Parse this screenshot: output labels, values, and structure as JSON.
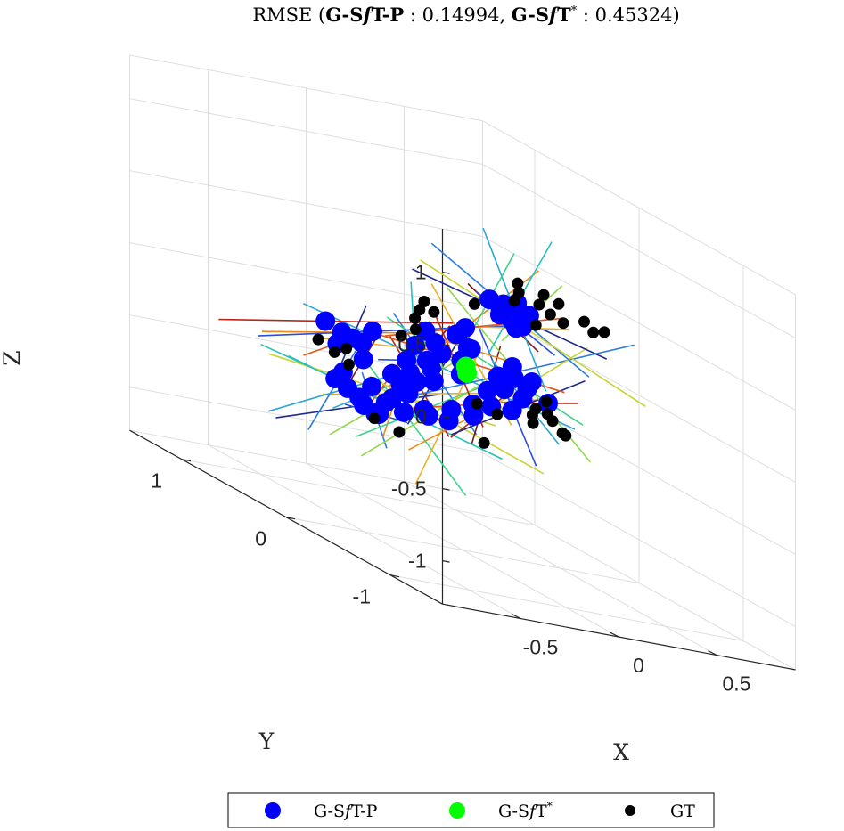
{
  "chart_data": {
    "type": "scatter",
    "title": {
      "prefix": "RMSE (",
      "method1": "G-S",
      "method1_f": "f",
      "method1_suffix": "T-P",
      "value1": " : 0.14994, ",
      "method2": "G-S",
      "method2_f": "f",
      "method2_suffix": "T",
      "method2_sup": "*",
      "value2": " : 0.45324)"
    },
    "xlabel": "X",
    "ylabel": "Y",
    "zlabel": "Z",
    "xlim": [
      -0.9,
      0.9
    ],
    "ylim": [
      -1.5,
      1.5
    ],
    "zlim": [
      -1.3,
      1.3
    ],
    "x_ticks": [
      "-0.5",
      "0",
      "0.5"
    ],
    "y_ticks": [
      "-1",
      "0",
      "1"
    ],
    "z_ticks": [
      "-1",
      "-0.5",
      "0",
      "0.5",
      "1"
    ],
    "grid": true,
    "legend_position": "bottom",
    "colors": {
      "gsft_p": "#0000ff",
      "gsft_star": "#00ff00",
      "gt": "#000000"
    },
    "series": [
      {
        "name": "G-SfT-P",
        "color": "#0000ff",
        "points": [
          [
            -0.45,
            0.1,
            -0.45
          ],
          [
            -0.4,
            0.05,
            -0.48
          ],
          [
            -0.38,
            0.12,
            -0.5
          ],
          [
            -0.42,
            0.2,
            -0.43
          ],
          [
            -0.35,
            0.08,
            -0.4
          ],
          [
            -0.3,
            0.0,
            -0.42
          ],
          [
            -0.28,
            0.15,
            -0.38
          ],
          [
            -0.33,
            0.25,
            -0.35
          ],
          [
            -0.25,
            0.05,
            -0.3
          ],
          [
            -0.22,
            0.18,
            -0.28
          ],
          [
            -0.2,
            0.3,
            -0.25
          ],
          [
            -0.18,
            0.1,
            -0.22
          ],
          [
            -0.15,
            0.22,
            -0.2
          ],
          [
            -0.12,
            0.05,
            -0.18
          ],
          [
            -0.1,
            0.35,
            -0.15
          ],
          [
            -0.08,
            0.15,
            -0.12
          ],
          [
            -0.05,
            0.25,
            -0.1
          ],
          [
            -0.03,
            0.4,
            -0.05
          ],
          [
            0.0,
            0.2,
            -0.02
          ],
          [
            0.02,
            0.3,
            0.02
          ],
          [
            0.05,
            0.45,
            0.05
          ],
          [
            -0.3,
            0.4,
            -0.1
          ],
          [
            -0.35,
            0.5,
            -0.08
          ],
          [
            -0.4,
            0.45,
            -0.15
          ],
          [
            -0.38,
            0.6,
            -0.05
          ],
          [
            -0.32,
            0.35,
            -0.2
          ],
          [
            -0.27,
            0.55,
            -0.12
          ],
          [
            -0.22,
            0.45,
            -0.02
          ],
          [
            -0.45,
            0.3,
            -0.3
          ],
          [
            -0.48,
            0.2,
            -0.38
          ],
          [
            -0.5,
            0.28,
            -0.35
          ],
          [
            -0.25,
            -0.1,
            -0.35
          ],
          [
            -0.2,
            -0.05,
            -0.4
          ],
          [
            -0.15,
            -0.15,
            -0.38
          ],
          [
            -0.1,
            -0.08,
            -0.32
          ],
          [
            -0.05,
            -0.2,
            -0.3
          ],
          [
            0.0,
            -0.1,
            -0.25
          ],
          [
            0.05,
            -0.18,
            -0.22
          ],
          [
            0.1,
            -0.05,
            -0.15
          ],
          [
            0.12,
            -0.25,
            -0.2
          ],
          [
            0.15,
            -0.12,
            -0.1
          ],
          [
            0.18,
            0.0,
            -0.05
          ],
          [
            0.2,
            -0.2,
            -0.12
          ],
          [
            0.22,
            -0.08,
            -0.02
          ],
          [
            0.25,
            -0.15,
            -0.06
          ],
          [
            0.28,
            0.05,
            0.02
          ],
          [
            0.3,
            -0.1,
            -0.02
          ],
          [
            0.08,
            0.1,
            0.08
          ],
          [
            0.1,
            0.25,
            0.12
          ],
          [
            0.02,
            0.05,
            0.0
          ],
          [
            -0.02,
            -0.02,
            -0.08
          ],
          [
            0.35,
            0.3,
            0.3
          ],
          [
            0.38,
            0.35,
            0.32
          ],
          [
            0.4,
            0.28,
            0.28
          ],
          [
            0.42,
            0.4,
            0.35
          ],
          [
            0.45,
            0.32,
            0.3
          ],
          [
            0.48,
            0.38,
            0.38
          ],
          [
            0.36,
            0.42,
            0.36
          ],
          [
            0.5,
            0.3,
            0.33
          ],
          [
            0.44,
            0.25,
            0.26
          ],
          [
            0.39,
            0.22,
            0.25
          ],
          [
            0.15,
            0.2,
            0.05
          ],
          [
            0.2,
            0.35,
            0.15
          ],
          [
            0.25,
            -0.35,
            -0.08
          ]
        ]
      },
      {
        "name": "G-SfT*",
        "color": "#00ff00",
        "points": [
          [
            0.05,
            0.05,
            -0.08
          ],
          [
            0.07,
            0.1,
            -0.05
          ]
        ]
      },
      {
        "name": "GT",
        "color": "#000000",
        "points": [
          [
            -0.55,
            0.35,
            -0.12
          ],
          [
            -0.52,
            0.25,
            -0.16
          ],
          [
            -0.5,
            0.15,
            -0.2
          ],
          [
            -0.45,
            0.0,
            -0.5
          ],
          [
            -0.35,
            -0.05,
            -0.55
          ],
          [
            -0.3,
            0.55,
            -0.2
          ],
          [
            -0.1,
            0.4,
            0.0
          ],
          [
            0.0,
            0.45,
            0.05
          ],
          [
            0.05,
            0.55,
            0.1
          ],
          [
            0.1,
            0.6,
            0.15
          ],
          [
            0.12,
            0.5,
            0.18
          ],
          [
            0.15,
            0.65,
            0.2
          ],
          [
            0.2,
            -0.3,
            -0.25
          ],
          [
            0.25,
            -0.2,
            -0.22
          ],
          [
            0.3,
            -0.25,
            -0.18
          ],
          [
            0.32,
            -0.1,
            -0.2
          ],
          [
            0.35,
            -0.3,
            -0.28
          ],
          [
            0.38,
            -0.15,
            -0.25
          ],
          [
            0.4,
            -0.05,
            -0.15
          ],
          [
            0.42,
            -0.2,
            -0.32
          ],
          [
            0.15,
            -0.05,
            -0.3
          ],
          [
            0.1,
            0.05,
            -0.28
          ],
          [
            0.45,
            0.35,
            0.4
          ],
          [
            0.5,
            0.4,
            0.45
          ],
          [
            0.55,
            0.3,
            0.42
          ],
          [
            0.58,
            0.25,
            0.38
          ],
          [
            0.6,
            0.35,
            0.48
          ],
          [
            0.62,
            0.2,
            0.35
          ],
          [
            0.65,
            0.3,
            0.45
          ],
          [
            0.7,
            0.15,
            0.4
          ],
          [
            0.72,
            0.1,
            0.35
          ],
          [
            0.75,
            0.05,
            0.38
          ],
          [
            0.52,
            0.45,
            0.5
          ],
          [
            0.48,
            0.2,
            0.3
          ],
          [
            0.3,
            0.45,
            0.3
          ],
          [
            -0.05,
            -0.3,
            -0.45
          ]
        ]
      }
    ],
    "legend": [
      {
        "label": "G-S",
        "label_f": "f",
        "label_suffix": "T-P",
        "sup": ""
      },
      {
        "label": "G-S",
        "label_f": "f",
        "label_suffix": "T",
        "sup": "*"
      },
      {
        "label": "GT",
        "label_f": "",
        "label_suffix": "",
        "sup": ""
      }
    ]
  }
}
